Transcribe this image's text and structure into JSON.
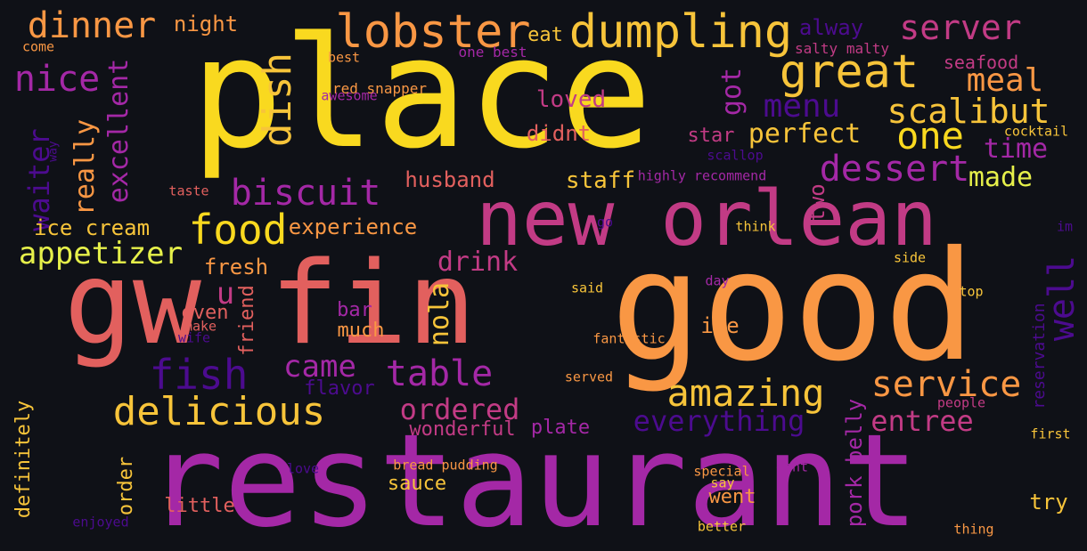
{
  "palette": {
    "background": "#0f1117",
    "yellow": "#f9d91f",
    "gold": "#f7c43a",
    "orange": "#f99744",
    "salmon": "#e2605e",
    "pink": "#c23b85",
    "magenta": "#a428a6",
    "purple": "#7a1aa3",
    "indigo": "#4c0b8f",
    "lime": "#e6f04a"
  },
  "words": [
    {
      "text": "restaurant"
    },
    {
      "text": "good"
    },
    {
      "text": "place"
    },
    {
      "text": "gw fin"
    },
    {
      "text": "new orlean"
    },
    {
      "text": "lobster"
    },
    {
      "text": "dumpling"
    },
    {
      "text": "dinner"
    },
    {
      "text": "server"
    },
    {
      "text": "great"
    },
    {
      "text": "nice"
    },
    {
      "text": "meal"
    },
    {
      "text": "scalibut"
    },
    {
      "text": "dish"
    },
    {
      "text": "menu"
    },
    {
      "text": "one"
    },
    {
      "text": "got"
    },
    {
      "text": "dessert"
    },
    {
      "text": "perfect"
    },
    {
      "text": "biscuit"
    },
    {
      "text": "food"
    },
    {
      "text": "appetizer"
    },
    {
      "text": "really"
    },
    {
      "text": "excellent"
    },
    {
      "text": "waiter"
    },
    {
      "text": "delicious"
    },
    {
      "text": "amazing"
    },
    {
      "text": "service"
    },
    {
      "text": "fish"
    },
    {
      "text": "table"
    },
    {
      "text": "came"
    },
    {
      "text": "well"
    },
    {
      "text": "drink"
    },
    {
      "text": "nola"
    },
    {
      "text": "ordered"
    },
    {
      "text": "everything"
    },
    {
      "text": "entree"
    },
    {
      "text": "made"
    },
    {
      "text": "time"
    },
    {
      "text": "staff"
    },
    {
      "text": "husband"
    },
    {
      "text": "experience"
    },
    {
      "text": "ice cream"
    },
    {
      "text": "fresh"
    },
    {
      "text": "u"
    },
    {
      "text": "two"
    },
    {
      "text": "loved"
    },
    {
      "text": "didnt"
    },
    {
      "text": "star"
    },
    {
      "text": "night"
    },
    {
      "text": "eat"
    },
    {
      "text": "alway"
    },
    {
      "text": "seafood"
    },
    {
      "text": "salty malty"
    },
    {
      "text": "best"
    },
    {
      "text": "one best"
    },
    {
      "text": "come"
    },
    {
      "text": "red snapper"
    },
    {
      "text": "awesome"
    },
    {
      "text": "cocktail"
    },
    {
      "text": "scallop"
    },
    {
      "text": "highly recommend"
    },
    {
      "text": "taste"
    },
    {
      "text": "way"
    },
    {
      "text": "go"
    },
    {
      "text": "think"
    },
    {
      "text": "im"
    },
    {
      "text": "side"
    },
    {
      "text": "day"
    },
    {
      "text": "top"
    },
    {
      "text": "said"
    },
    {
      "text": "bar"
    },
    {
      "text": "much"
    },
    {
      "text": "ive"
    },
    {
      "text": "even"
    },
    {
      "text": "make"
    },
    {
      "text": "wife"
    },
    {
      "text": "friend"
    },
    {
      "text": "fantastic"
    },
    {
      "text": "flavor"
    },
    {
      "text": "served"
    },
    {
      "text": "reservation"
    },
    {
      "text": "people"
    },
    {
      "text": "wonderful"
    },
    {
      "text": "plate"
    },
    {
      "text": "pork belly"
    },
    {
      "text": "first"
    },
    {
      "text": "definitely"
    },
    {
      "text": "order"
    },
    {
      "text": "love"
    },
    {
      "text": "bread pudding"
    },
    {
      "text": "special"
    },
    {
      "text": "dont"
    },
    {
      "text": "say"
    },
    {
      "text": "sauce"
    },
    {
      "text": "little"
    },
    {
      "text": "went"
    },
    {
      "text": "try"
    },
    {
      "text": "enjoyed"
    },
    {
      "text": "better"
    },
    {
      "text": "thing"
    }
  ]
}
